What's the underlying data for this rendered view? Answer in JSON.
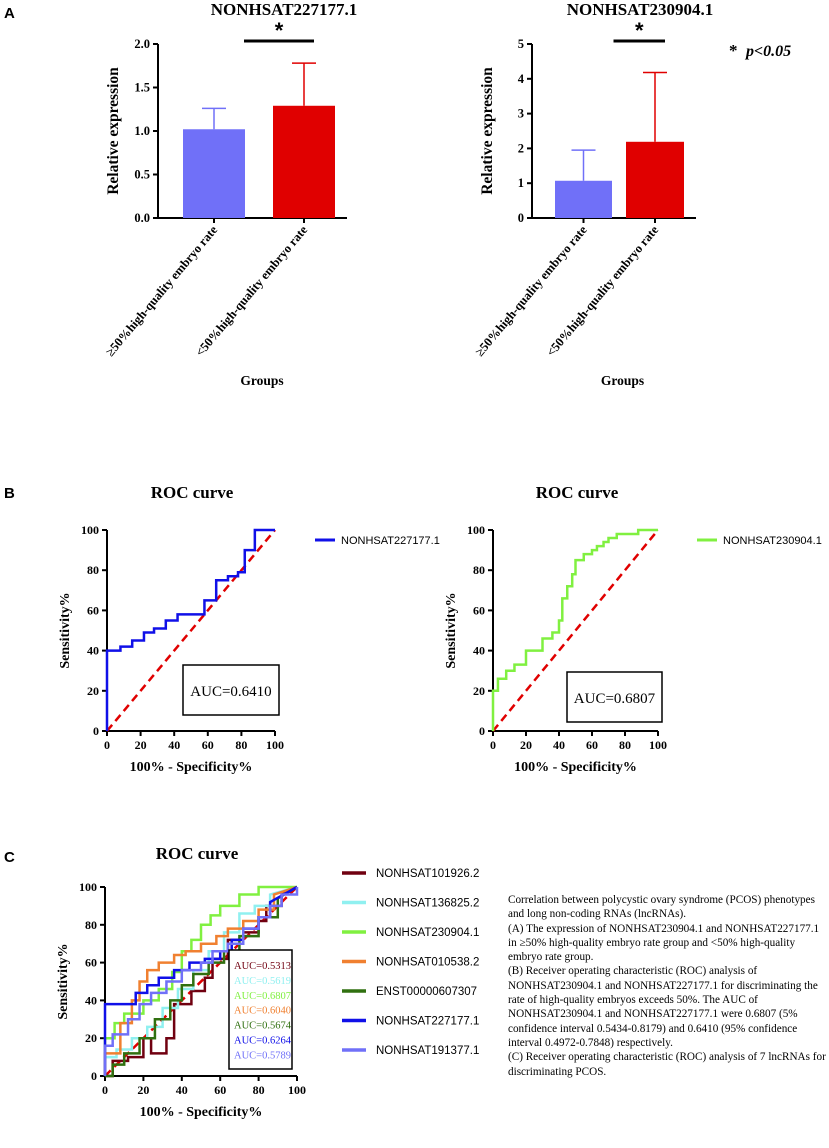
{
  "panel_labels": {
    "a": "A",
    "b": "B",
    "c": "C"
  },
  "significance_note": {
    "star": "*",
    "text": "p<0.05"
  },
  "chart_data": [
    {
      "id": "A1",
      "type": "bar",
      "title": "NONHSAT227177.1",
      "xlabel": "Groups",
      "ylabel": "Relative expression",
      "categories": [
        "≥50%high-quality embryo rate",
        "<50%high-quality embryo rate"
      ],
      "values": [
        1.02,
        1.29
      ],
      "errors": [
        0.24,
        0.49
      ],
      "colors": [
        "#7070F8",
        "#E00000"
      ],
      "ylim": [
        0,
        2.0
      ],
      "yticks": [
        0.0,
        0.5,
        1.0,
        1.5,
        2.0
      ],
      "ytick_labels": [
        "0.0",
        "0.5",
        "1.0",
        "1.5",
        "2.0"
      ],
      "significance": "*"
    },
    {
      "id": "A2",
      "type": "bar",
      "title": "NONHSAT230904.1",
      "xlabel": "Groups",
      "ylabel": "Relative expression",
      "categories": [
        "≥50%high-quality embryo rate",
        "<50%high-quality embryo rate"
      ],
      "values": [
        1.07,
        2.19
      ],
      "errors": [
        0.88,
        1.99
      ],
      "colors": [
        "#7070F8",
        "#E00000"
      ],
      "ylim": [
        0,
        5
      ],
      "yticks": [
        0,
        1,
        2,
        3,
        4,
        5
      ],
      "ytick_labels": [
        "0",
        "1",
        "2",
        "3",
        "4",
        "5"
      ],
      "significance": "*"
    },
    {
      "id": "B1",
      "type": "line",
      "title": "ROC curve",
      "xlabel": "100% - Specificity%",
      "ylabel": "Sensitivity%",
      "xlim": [
        0,
        100
      ],
      "ylim": [
        0,
        100
      ],
      "ticks": [
        0,
        20,
        40,
        60,
        80,
        100
      ],
      "auc_label": "AUC=0.6410",
      "reference_line_color": "#E00000",
      "series": [
        {
          "name": "NONHSAT227177.1",
          "color": "#1010E8",
          "x": [
            0,
            0,
            8,
            8,
            15,
            15,
            22,
            22,
            28,
            28,
            35,
            35,
            42,
            42,
            58,
            58,
            65,
            65,
            72,
            72,
            78,
            78,
            82,
            82,
            88,
            88,
            100
          ],
          "y": [
            0,
            40,
            40,
            42,
            42,
            45,
            45,
            49,
            49,
            51,
            51,
            55,
            55,
            58,
            58,
            65,
            65,
            75,
            75,
            77,
            77,
            79,
            79,
            90,
            90,
            100,
            100
          ]
        }
      ]
    },
    {
      "id": "B2",
      "type": "line",
      "title": "ROC curve",
      "xlabel": "100% - Specificity%",
      "ylabel": "Sensitivity%",
      "xlim": [
        0,
        100
      ],
      "ylim": [
        0,
        100
      ],
      "ticks": [
        0,
        20,
        40,
        60,
        80,
        100
      ],
      "auc_label": "AUC=0.6807",
      "reference_line_color": "#E00000",
      "series": [
        {
          "name": "NONHSAT230904.1",
          "color": "#80F040",
          "x": [
            0,
            0,
            3,
            3,
            8,
            8,
            13,
            13,
            20,
            20,
            30,
            30,
            36,
            36,
            40,
            40,
            42,
            42,
            45,
            45,
            48,
            48,
            50,
            50,
            55,
            55,
            60,
            60,
            63,
            63,
            67,
            67,
            70,
            70,
            75,
            75,
            88,
            88,
            100
          ],
          "y": [
            0,
            20,
            20,
            26,
            26,
            30,
            30,
            33,
            33,
            40,
            40,
            46,
            46,
            49,
            49,
            55,
            55,
            66,
            66,
            72,
            72,
            78,
            78,
            85,
            85,
            88,
            88,
            90,
            90,
            92,
            92,
            94,
            94,
            96,
            96,
            98,
            98,
            100,
            100
          ]
        }
      ]
    },
    {
      "id": "C",
      "type": "line",
      "title": "ROC curve",
      "xlabel": "100% - Specificity%",
      "ylabel": "Sensitivity%",
      "xlim": [
        0,
        100
      ],
      "ylim": [
        0,
        100
      ],
      "ticks": [
        0,
        20,
        40,
        60,
        80,
        100
      ],
      "reference_line_color": "#E00000",
      "series": [
        {
          "name": "NONHSAT101926.2",
          "auc": "AUC=0.5313",
          "color": "#700010",
          "x": [
            0,
            4,
            4,
            12,
            12,
            20,
            20,
            24,
            24,
            32,
            32,
            36,
            36,
            45,
            45,
            52,
            52,
            56,
            56,
            64,
            64,
            72,
            72,
            80,
            80,
            84,
            84,
            92,
            92,
            100
          ],
          "y": [
            0,
            0,
            8,
            8,
            10,
            10,
            20,
            20,
            12,
            12,
            20,
            20,
            38,
            38,
            45,
            45,
            52,
            52,
            62,
            62,
            72,
            72,
            76,
            76,
            82,
            82,
            90,
            90,
            96,
            100
          ]
        },
        {
          "name": "NONHSAT136825.2",
          "auc": "AUC=0.5619",
          "color": "#90F0F0",
          "x": [
            0,
            0,
            6,
            6,
            14,
            14,
            22,
            22,
            30,
            30,
            38,
            38,
            46,
            46,
            54,
            54,
            62,
            62,
            70,
            70,
            78,
            78,
            86,
            86,
            100
          ],
          "y": [
            0,
            10,
            10,
            14,
            14,
            20,
            20,
            26,
            26,
            36,
            36,
            46,
            46,
            56,
            56,
            66,
            66,
            76,
            76,
            86,
            86,
            90,
            90,
            96,
            100
          ]
        },
        {
          "name": "NONHSAT230904.1",
          "auc": "AUC=0.6807",
          "color": "#80F040",
          "x": [
            0,
            0,
            5,
            5,
            10,
            10,
            20,
            20,
            28,
            28,
            35,
            35,
            40,
            40,
            45,
            45,
            50,
            50,
            55,
            55,
            60,
            60,
            70,
            70,
            80,
            80,
            100
          ],
          "y": [
            0,
            20,
            20,
            28,
            28,
            33,
            33,
            40,
            40,
            46,
            46,
            55,
            55,
            66,
            66,
            72,
            72,
            80,
            80,
            85,
            85,
            90,
            90,
            96,
            96,
            100,
            100
          ]
        },
        {
          "name": "NONHSAT010538.2",
          "auc": "AUC=0.6040",
          "color": "#F08030",
          "x": [
            0,
            0,
            8,
            8,
            14,
            14,
            18,
            18,
            22,
            22,
            28,
            28,
            36,
            36,
            42,
            42,
            50,
            50,
            58,
            58,
            64,
            64,
            72,
            72,
            80,
            80,
            88,
            88,
            100
          ],
          "y": [
            0,
            12,
            12,
            28,
            28,
            40,
            40,
            50,
            50,
            56,
            56,
            60,
            60,
            64,
            64,
            66,
            66,
            70,
            70,
            74,
            74,
            78,
            78,
            82,
            82,
            88,
            88,
            96,
            100
          ]
        },
        {
          "name": "ENST00000607307",
          "auc": "AUC=0.5674",
          "color": "#307010",
          "x": [
            0,
            4,
            4,
            10,
            10,
            18,
            18,
            26,
            26,
            34,
            34,
            40,
            40,
            46,
            46,
            54,
            54,
            62,
            62,
            70,
            70,
            80,
            80,
            90,
            90,
            100
          ],
          "y": [
            0,
            0,
            6,
            6,
            12,
            12,
            20,
            20,
            30,
            30,
            40,
            40,
            48,
            48,
            54,
            54,
            60,
            60,
            66,
            66,
            74,
            74,
            84,
            84,
            94,
            100
          ]
        },
        {
          "name": "NONHSAT227177.1",
          "auc": "AUC=0.6264",
          "color": "#1010E8",
          "x": [
            0,
            0,
            16,
            16,
            22,
            22,
            28,
            28,
            36,
            36,
            44,
            44,
            52,
            52,
            60,
            60,
            66,
            66,
            72,
            72,
            80,
            80,
            86,
            86,
            100
          ],
          "y": [
            0,
            38,
            38,
            44,
            44,
            48,
            48,
            52,
            52,
            56,
            56,
            60,
            60,
            62,
            62,
            66,
            66,
            72,
            72,
            78,
            78,
            84,
            84,
            92,
            100
          ]
        },
        {
          "name": "NONHSAT191377.1",
          "auc": "AUC=0.5789",
          "color": "#7070F8",
          "x": [
            0,
            0,
            4,
            4,
            12,
            12,
            18,
            18,
            24,
            24,
            32,
            32,
            40,
            40,
            50,
            50,
            56,
            56,
            64,
            64,
            72,
            72,
            80,
            80,
            86,
            86,
            92,
            92,
            100,
            100
          ],
          "y": [
            0,
            16,
            16,
            22,
            22,
            30,
            30,
            38,
            38,
            44,
            44,
            50,
            50,
            56,
            56,
            60,
            60,
            66,
            66,
            70,
            70,
            78,
            78,
            84,
            84,
            90,
            90,
            96,
            96,
            100
          ]
        }
      ]
    }
  ],
  "caption": [
    "Correlation between polycystic ovary syndrome (PCOS) phenotypes and long non-coding RNAs (lncRNAs).",
    "(A) The expression of NONHSAT230904.1 and NONHSAT227177.1 in ≥50% high-quality embryo rate group and <50% high-quality embryo rate group.",
    "(B) Receiver operating characteristic (ROC) analysis of NONHSAT230904.1 and NONHSAT227177.1 for discriminating the rate of high-quality embryos exceeds 50%. The AUC of NONHSAT230904.1 and NONHSAT227177.1 were 0.6807 (5% confidence interval 0.5434-0.8179) and 0.6410 (95% confidence interval 0.4972-0.7848) respectively.",
    "(C) Receiver operating characteristic (ROC) analysis of 7 lncRNAs for discriminating PCOS."
  ]
}
